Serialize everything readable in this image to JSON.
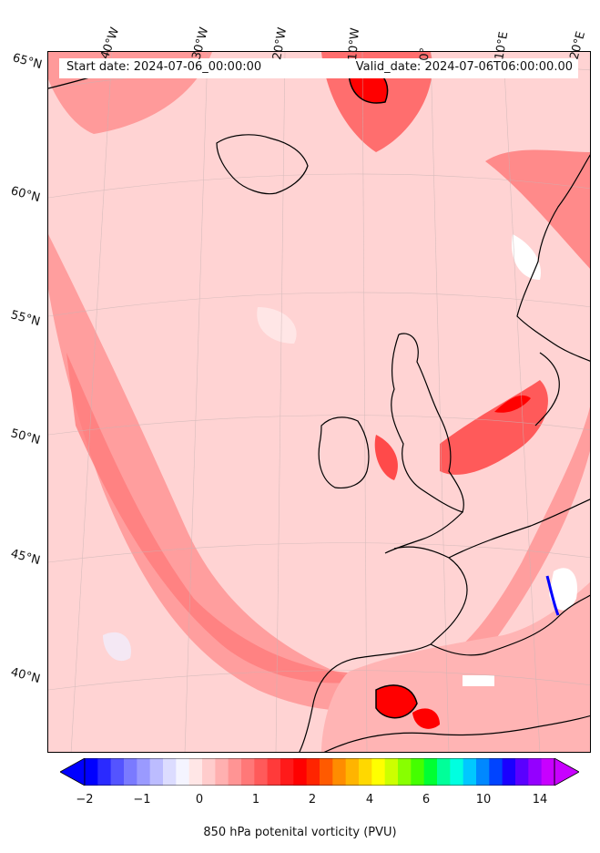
{
  "header": {
    "start_date": "Start date: 2024-07-06_00:00:00",
    "valid_date": "Valid_date: 2024-07-06T06:00:00.00"
  },
  "map": {
    "lon_labels": [
      "40°W",
      "30°W",
      "20°W",
      "10°W",
      "0°",
      "10°E",
      "20°E"
    ],
    "lat_labels": [
      "65°N",
      "60°N",
      "55°N",
      "50°N",
      "45°N",
      "40°N"
    ],
    "field": "850 hPa potential vorticity",
    "colors": {
      "background_low": "#ffd3d3",
      "moderate": "#ff8c8c",
      "high": "#ff4c4c",
      "peak": "#ff0000",
      "negative": "#e6e6ff"
    }
  },
  "colorbar": {
    "label": "850 hPa potenital vorticity (PVU)",
    "ticks": [
      "−2",
      "−1",
      "0",
      "1",
      "2",
      "4",
      "6",
      "10",
      "14"
    ],
    "colors": [
      "#0000ff",
      "#2a2aff",
      "#5454ff",
      "#7a7aff",
      "#9a9aff",
      "#bcbcff",
      "#dcdcff",
      "#f4f4ff",
      "#ffe6e6",
      "#ffcccc",
      "#ffb0b0",
      "#ff9494",
      "#ff7878",
      "#ff5a5a",
      "#ff3a3a",
      "#ff1a1a",
      "#ff0000",
      "#ff2400",
      "#ff5a00",
      "#ff8c00",
      "#ffb400",
      "#ffd800",
      "#ffff00",
      "#ccff00",
      "#88ff00",
      "#44ff00",
      "#00ff33",
      "#00ff99",
      "#00ffe0",
      "#00c8ff",
      "#0088ff",
      "#0044ff",
      "#1a00ff",
      "#5a00ff",
      "#9400ff",
      "#c800ff"
    ]
  }
}
